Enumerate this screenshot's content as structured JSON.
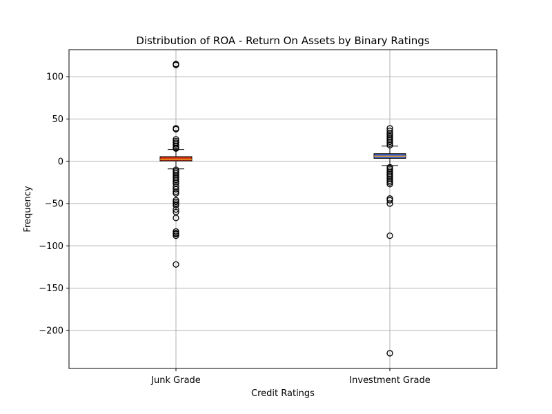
{
  "chart_data": {
    "type": "box",
    "title": "Distribution of ROA - Return On Assets by Binary Ratings",
    "xlabel": "Credit Ratings",
    "ylabel": "Frequency",
    "ylim": [
      -245,
      132
    ],
    "yticks": [
      100,
      50,
      0,
      -50,
      -100,
      -150,
      -200
    ],
    "ytick_labels": [
      "100",
      "50",
      "0",
      "−50",
      "−100",
      "−150",
      "−200"
    ],
    "grid": true,
    "categories": [
      "Junk Grade",
      "Investment Grade"
    ],
    "boxes": [
      {
        "name": "Junk Grade",
        "color": "#cc2f12",
        "median": 2.5,
        "q1": 0.5,
        "q3": 5.5,
        "whisker_low": -9,
        "whisker_high": 14,
        "outliers": [
          114,
          115,
          38,
          39,
          26,
          24,
          22,
          20,
          18,
          16,
          15,
          -10,
          -12,
          -14,
          -16,
          -18,
          -20,
          -22,
          -24,
          -26,
          -30,
          -33,
          -36,
          -38,
          -46,
          -48,
          -50,
          -52,
          -57,
          -60,
          -67,
          -83,
          -85,
          -86,
          -88,
          -122
        ]
      },
      {
        "name": "Investment Grade",
        "color": "#3d5fc4",
        "median": 6,
        "q1": 3.5,
        "q3": 9,
        "whisker_low": -5,
        "whisker_high": 18,
        "outliers": [
          39,
          36,
          33,
          31,
          29,
          27,
          25,
          23,
          21,
          19,
          -7,
          -9,
          -11,
          -13,
          -15,
          -17,
          -19,
          -21,
          -23,
          -25,
          -27,
          -44,
          -46,
          -50,
          -88,
          -227
        ]
      }
    ]
  }
}
